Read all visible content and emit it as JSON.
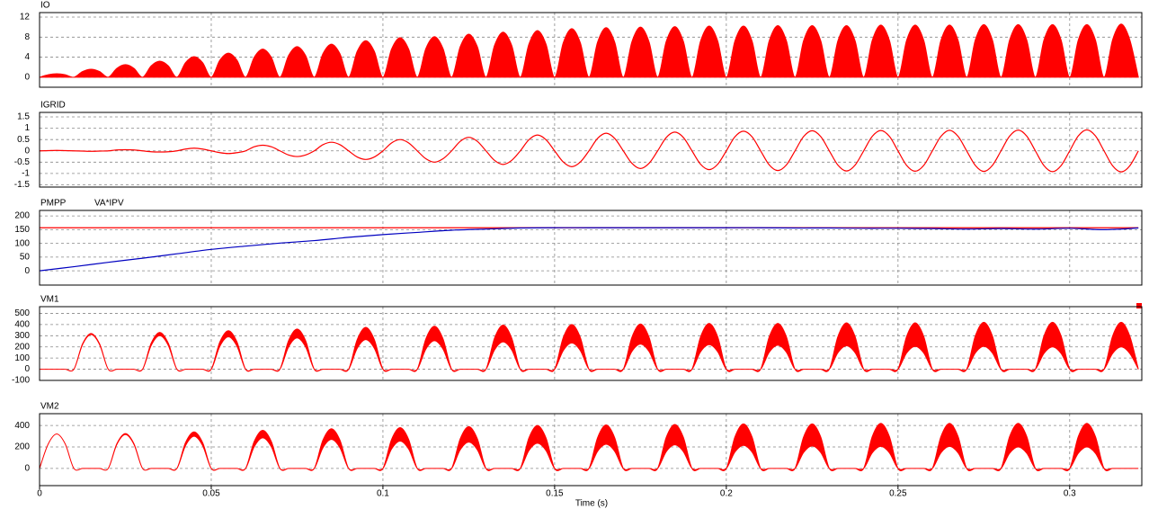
{
  "chart_data": {
    "type": "line",
    "xlabel": "Time (s)",
    "xlim": [
      0,
      0.321
    ],
    "xticks": [
      0,
      0.05,
      0.1,
      0.15,
      0.2,
      0.25,
      0.3
    ],
    "x": [
      0,
      0.0025,
      0.005,
      0.0075,
      0.01,
      0.0125,
      0.015,
      0.0175,
      0.02,
      0.0225,
      0.025,
      0.0275,
      0.03,
      0.0325,
      0.035,
      0.0375,
      0.04,
      0.0425,
      0.045,
      0.0475,
      0.05,
      0.0525,
      0.055,
      0.0575,
      0.06,
      0.0625,
      0.065,
      0.0675,
      0.07,
      0.0725,
      0.075,
      0.0775,
      0.08,
      0.0825,
      0.085,
      0.0875,
      0.09,
      0.0925,
      0.095,
      0.0975,
      0.1,
      0.1025,
      0.105,
      0.1075,
      0.11,
      0.1125,
      0.115,
      0.1175,
      0.12,
      0.1225,
      0.125,
      0.1275,
      0.13,
      0.1325,
      0.135,
      0.1375,
      0.14,
      0.1425,
      0.145,
      0.1475,
      0.15,
      0.1525,
      0.155,
      0.1575,
      0.16,
      0.1625,
      0.165,
      0.1675,
      0.17,
      0.1725,
      0.175,
      0.1775,
      0.18,
      0.1825,
      0.185,
      0.1875,
      0.19,
      0.1925,
      0.195,
      0.1975,
      0.2,
      0.2025,
      0.205,
      0.2075,
      0.21,
      0.2125,
      0.215,
      0.2175,
      0.22,
      0.2225,
      0.225,
      0.2275,
      0.23,
      0.2325,
      0.235,
      0.2375,
      0.24,
      0.2425,
      0.245,
      0.2475,
      0.25,
      0.2525,
      0.255,
      0.2575,
      0.26,
      0.2625,
      0.265,
      0.2675,
      0.27,
      0.2725,
      0.275,
      0.2775,
      0.28,
      0.2825,
      0.285,
      0.2875,
      0.29,
      0.2925,
      0.295,
      0.2975,
      0.3,
      0.3025,
      0.305,
      0.3075,
      0.31,
      0.3125,
      0.315,
      0.3175,
      0.32
    ],
    "panels": [
      {
        "type": "area",
        "ylim": [
          -2,
          12.9
        ],
        "yticks": [
          0,
          4,
          8,
          12
        ],
        "series": [
          {
            "name": "IO",
            "color": "#ff0000",
            "values": [
              0,
              0.49,
              0.7,
              0.49,
              0,
              1.13,
              1.6,
              1.13,
              0,
              1.77,
              2.5,
              1.77,
              0,
              2.26,
              3.2,
              2.26,
              0,
              2.9,
              4.1,
              2.9,
              0,
              3.39,
              4.8,
              3.39,
              0,
              3.96,
              5.6,
              3.96,
              0,
              4.31,
              6.1,
              4.31,
              0,
              4.67,
              6.6,
              4.67,
              0,
              5.16,
              7.3,
              5.16,
              0,
              5.59,
              7.9,
              5.59,
              0,
              5.73,
              8.1,
              5.73,
              0,
              6.08,
              8.6,
              6.08,
              0,
              6.36,
              9.0,
              6.36,
              0,
              6.58,
              9.3,
              6.58,
              0,
              6.86,
              9.7,
              6.86,
              0,
              7.0,
              9.9,
              7.0,
              0,
              7.07,
              10.0,
              7.07,
              0,
              7.14,
              10.1,
              7.14,
              0,
              7.21,
              10.2,
              7.21,
              0,
              7.21,
              10.2,
              7.21,
              0,
              7.28,
              10.3,
              7.28,
              0,
              7.28,
              10.3,
              7.28,
              0,
              7.28,
              10.3,
              7.28,
              0,
              7.35,
              10.4,
              7.35,
              0,
              7.35,
              10.4,
              7.35,
              0,
              7.35,
              10.4,
              7.35,
              0,
              7.42,
              10.5,
              7.42,
              0,
              7.42,
              10.5,
              7.42,
              0,
              7.42,
              10.5,
              7.42,
              0,
              7.42,
              10.5,
              7.42,
              0,
              7.49,
              10.6,
              7.49,
              0
            ]
          }
        ]
      },
      {
        "type": "line",
        "ylim": [
          -1.6,
          1.7
        ],
        "yticks": [
          1.5,
          1,
          0.5,
          0,
          -0.5,
          -1,
          -1.5
        ],
        "series": [
          {
            "name": "IGRID",
            "color": "#ff0000",
            "values": [
              0,
              0.01,
              0.02,
              0.01,
              0,
              -0.01,
              -0.02,
              -0.01,
              0,
              0.04,
              0.05,
              0.04,
              0,
              -0.04,
              -0.05,
              -0.04,
              0,
              0.08,
              0.12,
              0.08,
              0,
              -0.08,
              -0.12,
              -0.08,
              0,
              0.18,
              0.25,
              0.18,
              0,
              -0.18,
              -0.25,
              -0.18,
              0,
              0.27,
              0.38,
              0.27,
              0,
              -0.27,
              -0.38,
              -0.27,
              0,
              0.35,
              0.5,
              0.35,
              0,
              -0.35,
              -0.5,
              -0.35,
              0,
              0.42,
              0.6,
              0.42,
              0,
              -0.42,
              -0.6,
              -0.42,
              0,
              0.49,
              0.7,
              0.49,
              0,
              -0.49,
              -0.7,
              -0.49,
              0,
              0.55,
              0.78,
              0.55,
              0,
              -0.55,
              -0.78,
              -0.55,
              0,
              0.59,
              0.83,
              0.59,
              0,
              -0.59,
              -0.83,
              -0.59,
              0,
              0.62,
              0.87,
              0.62,
              0,
              -0.62,
              -0.87,
              -0.62,
              0,
              0.63,
              0.89,
              0.63,
              0,
              -0.63,
              -0.89,
              -0.63,
              0,
              0.64,
              0.9,
              0.64,
              0,
              -0.64,
              -0.9,
              -0.64,
              0,
              0.64,
              0.91,
              0.64,
              0,
              -0.64,
              -0.91,
              -0.64,
              0,
              0.65,
              0.92,
              0.65,
              0,
              -0.65,
              -0.92,
              -0.65,
              0,
              0.66,
              0.93,
              0.66,
              0,
              -0.66,
              -0.93,
              -0.66,
              0
            ]
          }
        ]
      },
      {
        "type": "line",
        "ylim": [
          -52,
          220
        ],
        "yticks": [
          0,
          50,
          100,
          150,
          200
        ],
        "x": [
          0,
          0.01,
          0.02,
          0.03,
          0.04,
          0.05,
          0.06,
          0.07,
          0.08,
          0.09,
          0.1,
          0.11,
          0.12,
          0.13,
          0.14,
          0.15,
          0.16,
          0.17,
          0.18,
          0.19,
          0.2,
          0.21,
          0.22,
          0.23,
          0.24,
          0.25,
          0.26,
          0.27,
          0.28,
          0.29,
          0.3,
          0.31,
          0.32
        ],
        "series": [
          {
            "name": "PMPP",
            "color": "#ff0000",
            "values": [
              157,
              157,
              157,
              157,
              157,
              157,
              157,
              157,
              157,
              157,
              157,
              157,
              157,
              157,
              157,
              157,
              157,
              157,
              157,
              157,
              157,
              157,
              157,
              157,
              157,
              157,
              157,
              157,
              157,
              157,
              157,
              157,
              157
            ]
          },
          {
            "name": "VA*IPV",
            "color": "#0000c0",
            "values": [
              0,
              15,
              31,
              46,
              62,
              78,
              90,
              101,
              110,
              122,
              132,
              140,
              148,
              152,
              156,
              157,
              157,
              157,
              157,
              157,
              157,
              157,
              156,
              156,
              155,
              155,
              154,
              152,
              154,
              152,
              155,
              150,
              156
            ]
          }
        ]
      },
      {
        "type": "band",
        "ylim": [
          -100,
          560
        ],
        "yticks": [
          500,
          400,
          300,
          200,
          100,
          0,
          -100
        ],
        "series": [
          {
            "name": "VM1",
            "color": "#ff0000",
            "values": [
              0,
              0,
              0,
              0,
              0,
              226,
              320,
              226,
              0,
              0,
              0,
              0,
              0,
              233,
              330,
              233,
              0,
              0,
              0,
              0,
              0,
              244,
              345,
              244,
              0,
              0,
              0,
              0,
              0,
              255,
              360,
              255,
              0,
              0,
              0,
              0,
              0,
              265,
              375,
              265,
              0,
              0,
              0,
              0,
              0,
              272,
              385,
              272,
              0,
              0,
              0,
              0,
              0,
              279,
              395,
              279,
              0,
              0,
              0,
              0,
              0,
              283,
              400,
              283,
              0,
              0,
              0,
              0,
              0,
              286,
              405,
              286,
              0,
              0,
              0,
              0,
              0,
              290,
              410,
              290,
              0,
              0,
              0,
              0,
              0,
              290,
              410,
              290,
              0,
              0,
              0,
              0,
              0,
              293,
              415,
              293,
              0,
              0,
              0,
              0,
              0,
              293,
              415,
              293,
              0,
              0,
              0,
              0,
              0,
              297,
              420,
              297,
              0,
              0,
              0,
              0,
              0,
              297,
              420,
              297,
              0,
              0,
              0,
              0,
              0,
              297,
              420,
              297,
              0
            ],
            "low": [
              0,
              0,
              0,
              0,
              0,
              219,
              310,
              219,
              0,
              0,
              0,
              0,
              0,
              212,
              300,
              212,
              0,
              0,
              0,
              0,
              0,
              205,
              290,
              205,
              0,
              0,
              0,
              0,
              0,
              198,
              280,
              198,
              0,
              0,
              0,
              0,
              0,
              187,
              265,
              187,
              0,
              0,
              0,
              0,
              0,
              180,
              255,
              180,
              0,
              0,
              0,
              0,
              0,
              173,
              245,
              173,
              0,
              0,
              0,
              0,
              0,
              166,
              235,
              166,
              0,
              0,
              0,
              0,
              0,
              159,
              225,
              159,
              0,
              0,
              0,
              0,
              0,
              156,
              220,
              156,
              0,
              0,
              0,
              0,
              0,
              152,
              215,
              152,
              0,
              0,
              0,
              0,
              0,
              148,
              210,
              148,
              0,
              0,
              0,
              0,
              0,
              145,
              205,
              145,
              0,
              0,
              0,
              0,
              0,
              145,
              205,
              145,
              0,
              0,
              0,
              0,
              0,
              141,
              200,
              141,
              0,
              0,
              0,
              0,
              0,
              141,
              200,
              141,
              0
            ]
          }
        ]
      },
      {
        "type": "band",
        "ylim": [
          -160,
          510
        ],
        "yticks": [
          0,
          200,
          400
        ],
        "series": [
          {
            "name": "VM2",
            "color": "#ff0000",
            "values": [
              0,
              226,
              320,
              226,
              0,
              0,
              0,
              0,
              0,
              230,
              325,
              230,
              0,
              0,
              0,
              0,
              0,
              240,
              340,
              240,
              0,
              0,
              0,
              0,
              0,
              251,
              355,
              251,
              0,
              0,
              0,
              0,
              0,
              262,
              370,
              262,
              0,
              0,
              0,
              0,
              0,
              269,
              380,
              269,
              0,
              0,
              0,
              0,
              0,
              276,
              390,
              276,
              0,
              0,
              0,
              0,
              0,
              283,
              400,
              283,
              0,
              0,
              0,
              0,
              0,
              286,
              405,
              286,
              0,
              0,
              0,
              0,
              0,
              290,
              410,
              290,
              0,
              0,
              0,
              0,
              0,
              293,
              415,
              293,
              0,
              0,
              0,
              0,
              0,
              293,
              415,
              293,
              0,
              0,
              0,
              0,
              0,
              297,
              420,
              297,
              0,
              0,
              0,
              0,
              0,
              297,
              420,
              297,
              0,
              0,
              0,
              0,
              0,
              297,
              420,
              297,
              0,
              0,
              0,
              0,
              0,
              297,
              420,
              297,
              0,
              0,
              0,
              0,
              0
            ],
            "low": [
              0,
              226,
              320,
              226,
              0,
              0,
              0,
              0,
              0,
              223,
              315,
              223,
              0,
              0,
              0,
              0,
              0,
              212,
              300,
              212,
              0,
              0,
              0,
              0,
              0,
              201,
              285,
              201,
              0,
              0,
              0,
              0,
              0,
              191,
              270,
              191,
              0,
              0,
              0,
              0,
              0,
              180,
              255,
              180,
              0,
              0,
              0,
              0,
              0,
              173,
              245,
              173,
              0,
              0,
              0,
              0,
              0,
              166,
              235,
              166,
              0,
              0,
              0,
              0,
              0,
              159,
              225,
              159,
              0,
              0,
              0,
              0,
              0,
              156,
              220,
              156,
              0,
              0,
              0,
              0,
              0,
              152,
              215,
              152,
              0,
              0,
              0,
              0,
              0,
              148,
              210,
              148,
              0,
              0,
              0,
              0,
              0,
              145,
              205,
              145,
              0,
              0,
              0,
              0,
              0,
              145,
              205,
              145,
              0,
              0,
              0,
              0,
              0,
              141,
              200,
              141,
              0,
              0,
              0,
              0,
              0,
              141,
              200,
              141,
              0,
              0,
              0,
              0,
              0
            ]
          }
        ]
      }
    ]
  }
}
